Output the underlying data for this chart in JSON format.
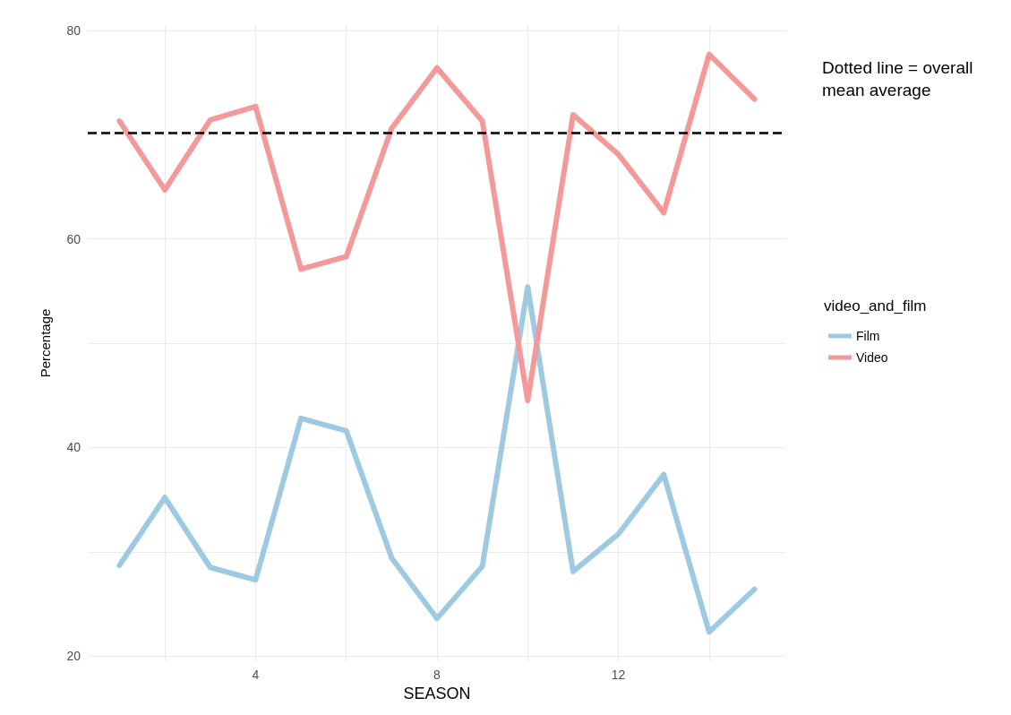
{
  "chart_data": {
    "type": "line",
    "xlabel": "SEASON",
    "ylabel": "Percentage",
    "legend_title": "video_and_film",
    "annotations": [
      "Dotted line = overall mean average"
    ],
    "x": [
      1,
      2,
      3,
      4,
      5,
      6,
      7,
      8,
      9,
      10,
      11,
      12,
      13,
      14,
      15
    ],
    "series": [
      {
        "name": "Film",
        "color": "#9ecae1",
        "values": [
          28.7,
          35.2,
          28.5,
          27.3,
          42.8,
          41.6,
          29.4,
          23.6,
          28.6,
          55.4,
          28.1,
          31.7,
          37.4,
          22.3,
          26.4
        ]
      },
      {
        "name": "Video",
        "color": "#f4999a",
        "values": [
          71.3,
          64.7,
          71.4,
          72.7,
          57.1,
          58.3,
          70.6,
          76.4,
          71.3,
          44.5,
          71.9,
          68.1,
          62.5,
          77.7,
          73.4
        ]
      }
    ],
    "ref_lines": [
      {
        "axis": "y",
        "value": 70.2,
        "label": null,
        "color": "#000000",
        "line_style": "dashed"
      }
    ],
    "xlim": [
      0.3,
      15.7
    ],
    "ylim": [
      19.5,
      80.5
    ],
    "xticks": [
      {
        "value": 2,
        "label": null
      },
      4,
      {
        "value": 6,
        "label": null
      },
      8,
      {
        "value": 10,
        "label": null
      },
      12,
      {
        "value": 14,
        "label": null
      }
    ],
    "yticks": [
      20,
      {
        "value": 30,
        "label": null
      },
      40,
      {
        "value": 50,
        "label": null
      },
      60,
      {
        "value": 70,
        "label": null
      },
      80
    ],
    "grid": true,
    "legend": "right",
    "marker": "none",
    "line_style": "solid"
  }
}
